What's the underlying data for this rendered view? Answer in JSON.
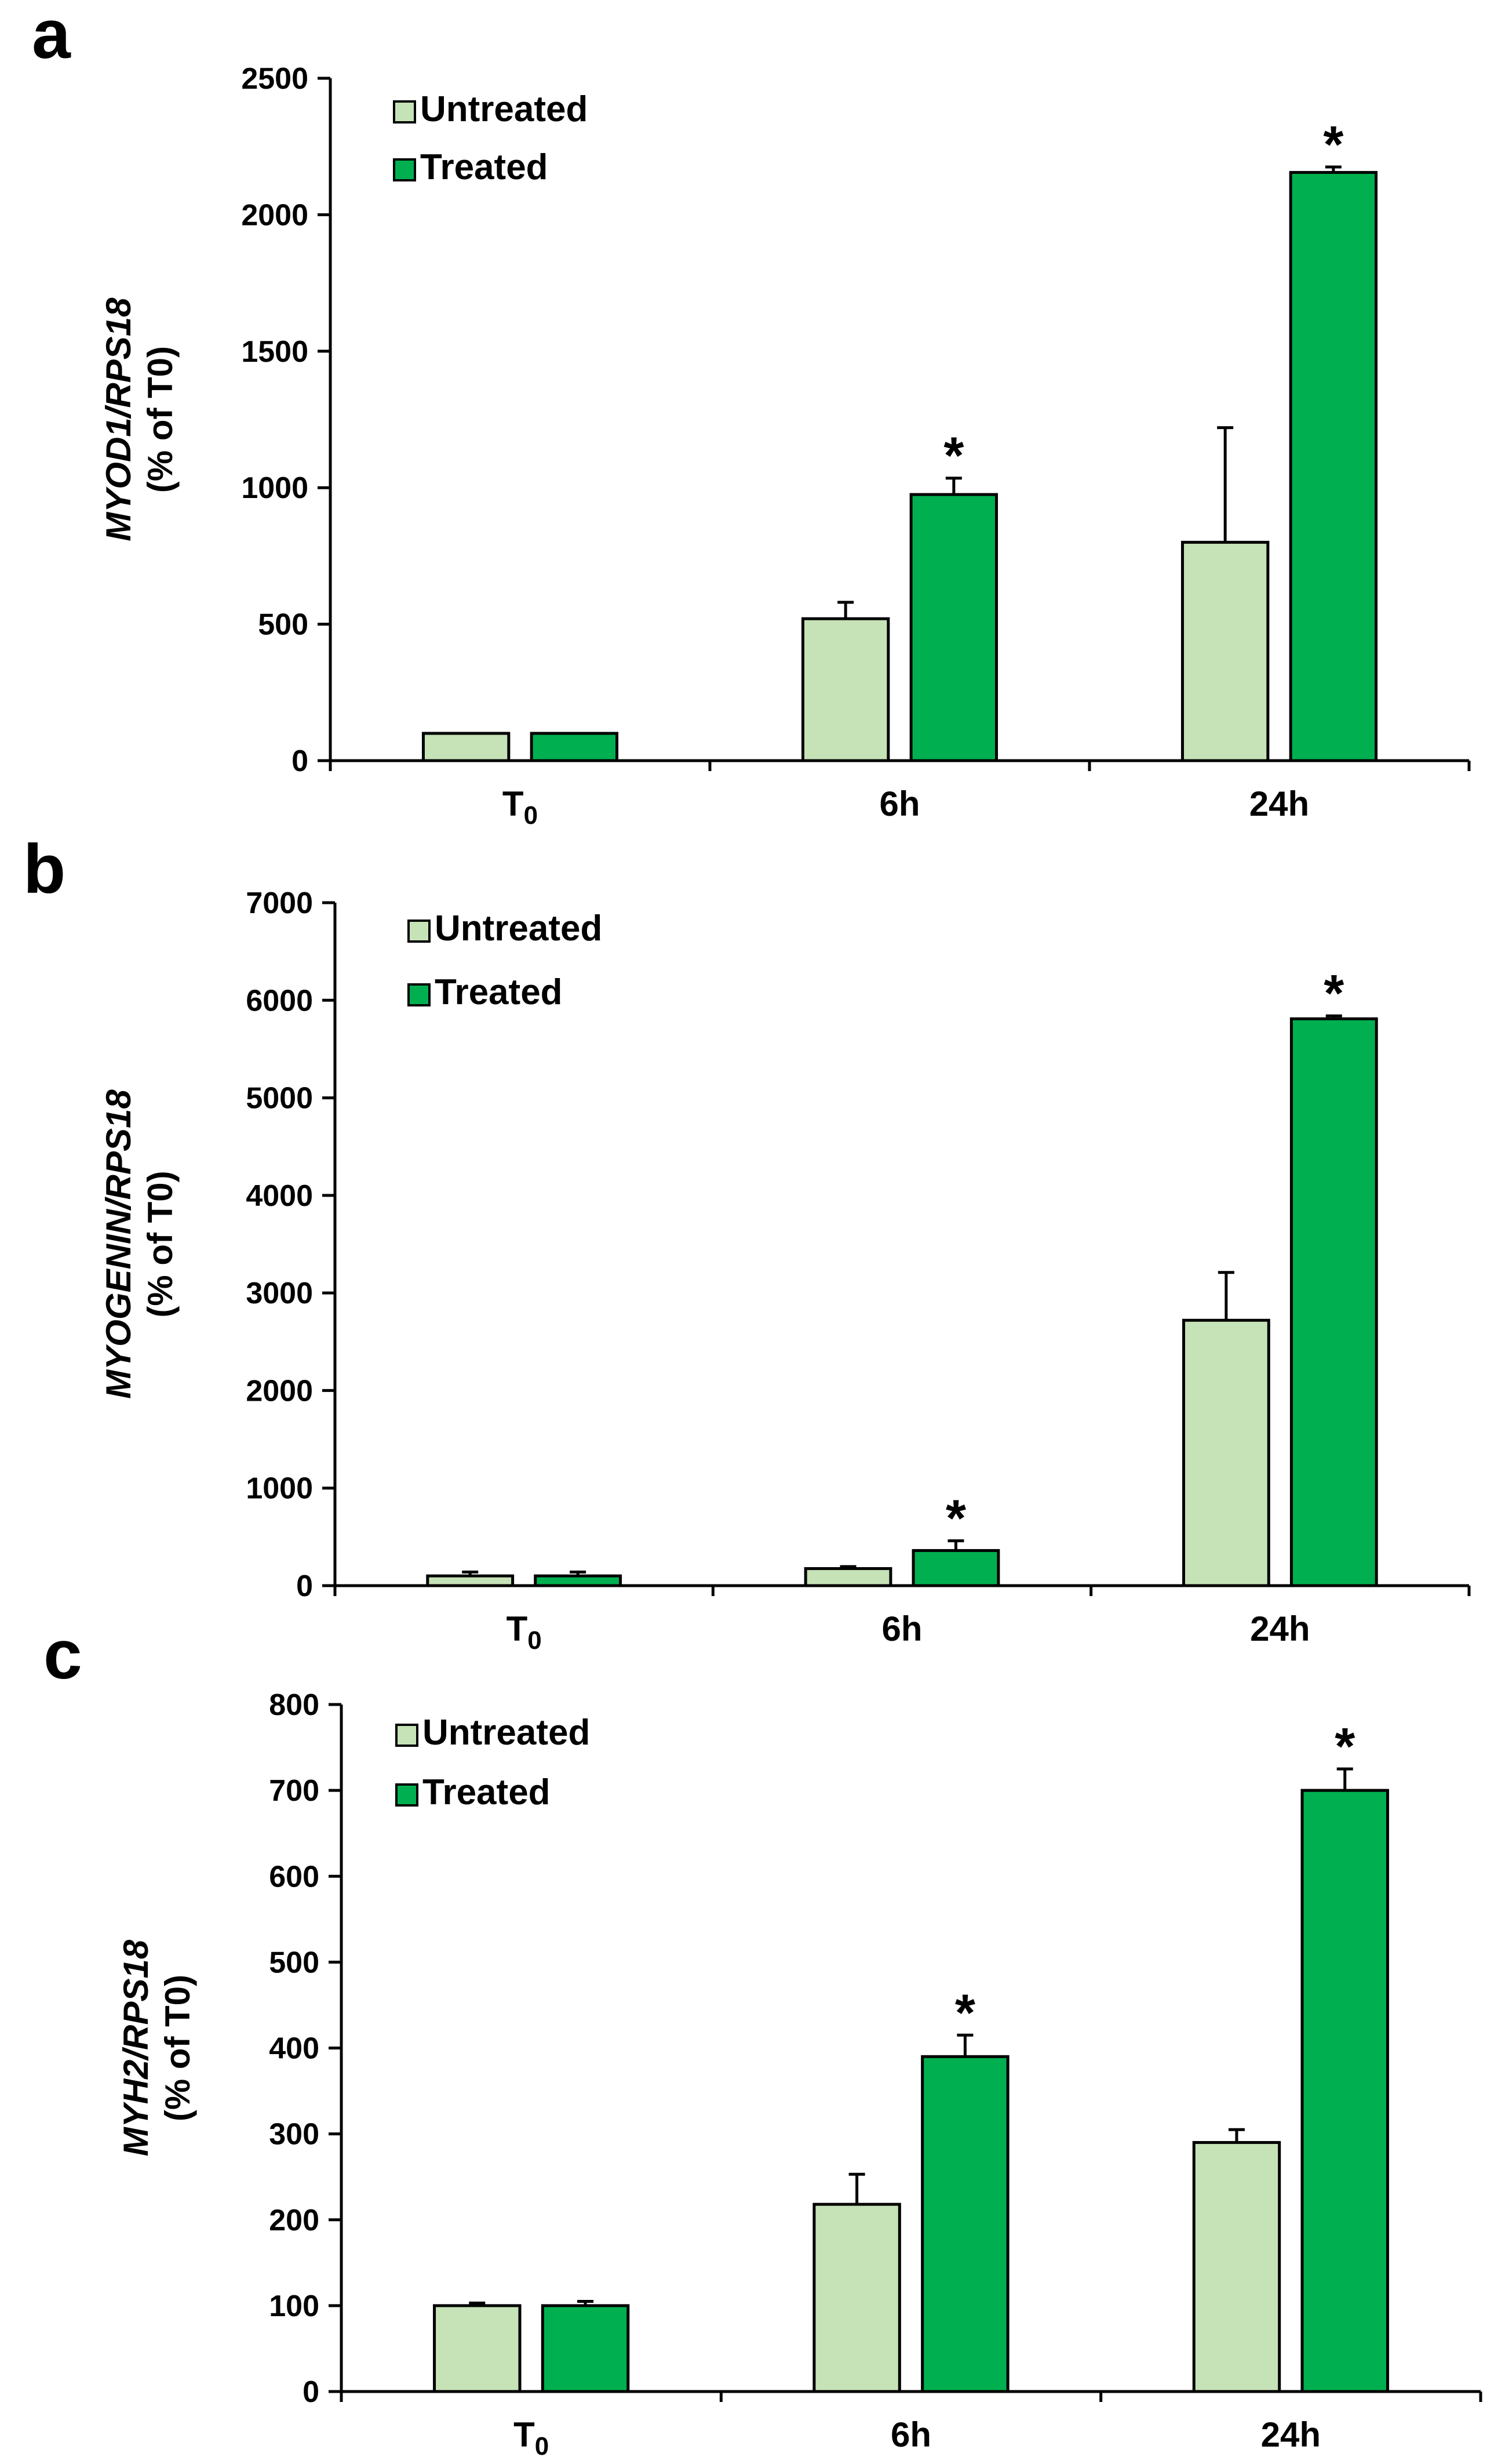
{
  "chart_data": [
    {
      "panel": "a",
      "type": "bar",
      "categories": [
        "T",
        "6h",
        "24h"
      ],
      "category_subscripts": [
        "0",
        "",
        ""
      ],
      "ylabel_gene": "MYOD1/RPS18",
      "ylabel_unit": "(% of T0)",
      "ylim": [
        0,
        2500
      ],
      "yticks": [
        0,
        500,
        1000,
        1500,
        2000,
        2500
      ],
      "legend": [
        "Untreated",
        "Treated"
      ],
      "series": [
        {
          "name": "Untreated",
          "values": [
            100,
            520,
            800
          ],
          "errors": [
            0,
            60,
            420
          ]
        },
        {
          "name": "Treated",
          "values": [
            100,
            975,
            2155
          ],
          "errors": [
            0,
            60,
            20
          ]
        }
      ],
      "significance": [
        "",
        "*",
        "*"
      ],
      "colors": {
        "untreated": "#c6e2b7",
        "treated": "#00b050"
      }
    },
    {
      "panel": "b",
      "type": "bar",
      "categories": [
        "T",
        "6h",
        "24h"
      ],
      "category_subscripts": [
        "0",
        "",
        ""
      ],
      "ylabel_gene": "MYOGENIN/RPS18",
      "ylabel_unit": "(% of T0)",
      "ylim": [
        0,
        7000
      ],
      "yticks": [
        0,
        1000,
        2000,
        3000,
        4000,
        5000,
        6000,
        7000
      ],
      "legend": [
        "Untreated",
        "Treated"
      ],
      "series": [
        {
          "name": "Untreated",
          "values": [
            100,
            175,
            2720
          ],
          "errors": [
            40,
            20,
            490
          ]
        },
        {
          "name": "Treated",
          "values": [
            100,
            360,
            5810
          ],
          "errors": [
            40,
            100,
            30
          ]
        }
      ],
      "significance": [
        "",
        "*",
        "*"
      ],
      "colors": {
        "untreated": "#c6e2b7",
        "treated": "#00b050"
      }
    },
    {
      "panel": "c",
      "type": "bar",
      "categories": [
        "T",
        "6h",
        "24h"
      ],
      "category_subscripts": [
        "0",
        "",
        ""
      ],
      "ylabel_gene": "MYH2/RPS18",
      "ylabel_unit": "(% of T0)",
      "ylim": [
        0,
        800
      ],
      "yticks": [
        0,
        100,
        200,
        300,
        400,
        500,
        600,
        700,
        800
      ],
      "legend": [
        "Untreated",
        "Treated"
      ],
      "series": [
        {
          "name": "Untreated",
          "values": [
            100,
            218,
            290
          ],
          "errors": [
            3,
            35,
            15
          ]
        },
        {
          "name": "Treated",
          "values": [
            100,
            390,
            700
          ],
          "errors": [
            5,
            25,
            25
          ]
        }
      ],
      "significance": [
        "",
        "*",
        "*"
      ],
      "colors": {
        "untreated": "#c6e2b7",
        "treated": "#00b050"
      }
    }
  ]
}
